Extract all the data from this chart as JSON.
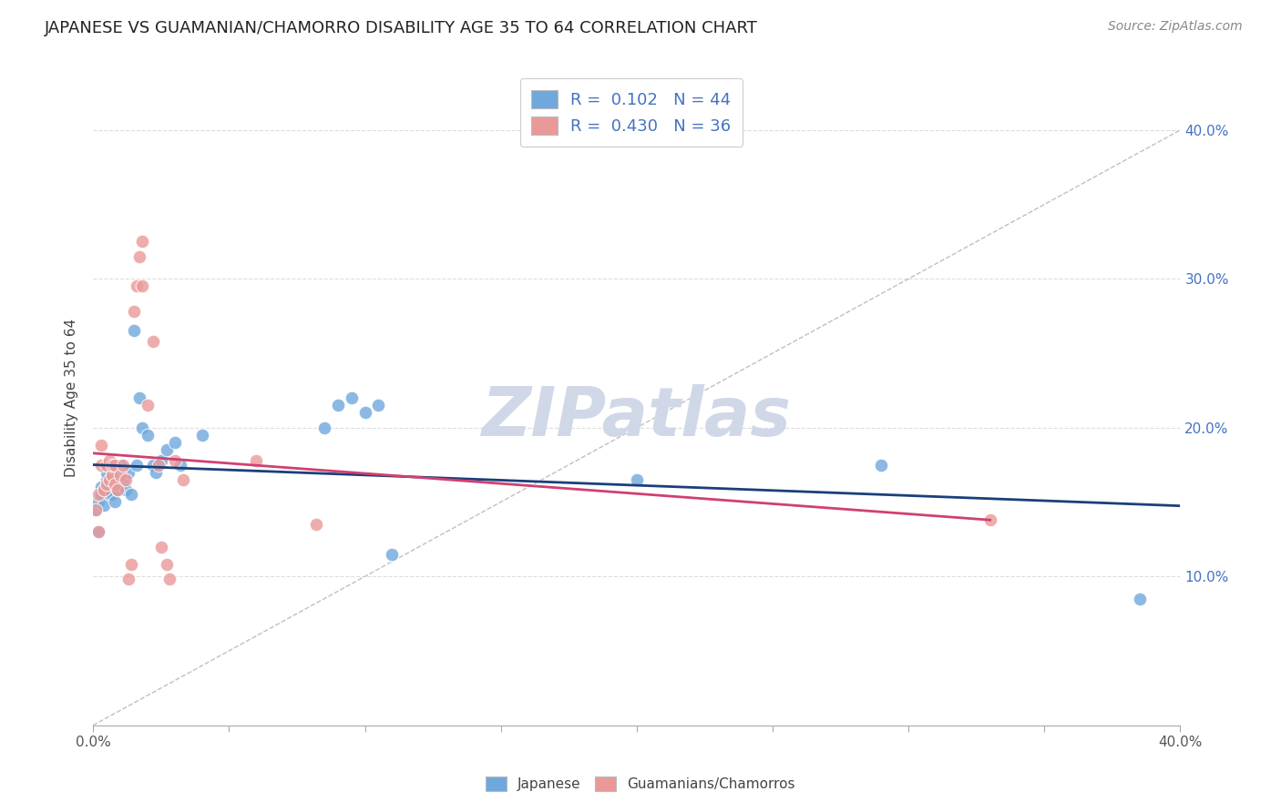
{
  "title": "JAPANESE VS GUAMANIAN/CHAMORRO DISABILITY AGE 35 TO 64 CORRELATION CHART",
  "source": "Source: ZipAtlas.com",
  "ylabel": "Disability Age 35 to 64",
  "xlim": [
    0.0,
    0.4
  ],
  "ylim": [
    0.0,
    0.44
  ],
  "xticks": [
    0.0,
    0.05,
    0.1,
    0.15,
    0.2,
    0.25,
    0.3,
    0.35,
    0.4
  ],
  "yticks": [
    0.1,
    0.2,
    0.3,
    0.4
  ],
  "ytick_labels": [
    "10.0%",
    "20.0%",
    "30.0%",
    "40.0%"
  ],
  "xtick_labels": [
    "0.0%",
    "",
    "",
    "",
    "",
    "",
    "",
    "",
    "40.0%"
  ],
  "japanese_color": "#6fa8dc",
  "guamanian_color": "#ea9999",
  "japanese_R": 0.102,
  "japanese_N": 44,
  "guamanian_R": 0.43,
  "guamanian_N": 36,
  "japanese_points": [
    [
      0.001,
      0.145
    ],
    [
      0.002,
      0.15
    ],
    [
      0.002,
      0.13
    ],
    [
      0.003,
      0.16
    ],
    [
      0.003,
      0.155
    ],
    [
      0.004,
      0.158
    ],
    [
      0.004,
      0.148
    ],
    [
      0.005,
      0.165
    ],
    [
      0.005,
      0.17
    ],
    [
      0.006,
      0.155
    ],
    [
      0.006,
      0.162
    ],
    [
      0.007,
      0.168
    ],
    [
      0.007,
      0.155
    ],
    [
      0.008,
      0.163
    ],
    [
      0.008,
      0.15
    ],
    [
      0.009,
      0.158
    ],
    [
      0.009,
      0.17
    ],
    [
      0.01,
      0.175
    ],
    [
      0.01,
      0.162
    ],
    [
      0.011,
      0.165
    ],
    [
      0.012,
      0.158
    ],
    [
      0.013,
      0.17
    ],
    [
      0.014,
      0.155
    ],
    [
      0.015,
      0.265
    ],
    [
      0.016,
      0.175
    ],
    [
      0.017,
      0.22
    ],
    [
      0.018,
      0.2
    ],
    [
      0.02,
      0.195
    ],
    [
      0.022,
      0.175
    ],
    [
      0.023,
      0.17
    ],
    [
      0.025,
      0.178
    ],
    [
      0.027,
      0.185
    ],
    [
      0.03,
      0.19
    ],
    [
      0.032,
      0.175
    ],
    [
      0.04,
      0.195
    ],
    [
      0.085,
      0.2
    ],
    [
      0.09,
      0.215
    ],
    [
      0.095,
      0.22
    ],
    [
      0.1,
      0.21
    ],
    [
      0.105,
      0.215
    ],
    [
      0.11,
      0.115
    ],
    [
      0.2,
      0.165
    ],
    [
      0.29,
      0.175
    ],
    [
      0.385,
      0.085
    ]
  ],
  "guamanian_points": [
    [
      0.001,
      0.145
    ],
    [
      0.002,
      0.155
    ],
    [
      0.002,
      0.13
    ],
    [
      0.003,
      0.175
    ],
    [
      0.003,
      0.188
    ],
    [
      0.004,
      0.158
    ],
    [
      0.005,
      0.162
    ],
    [
      0.005,
      0.175
    ],
    [
      0.006,
      0.178
    ],
    [
      0.006,
      0.165
    ],
    [
      0.007,
      0.168
    ],
    [
      0.007,
      0.175
    ],
    [
      0.008,
      0.162
    ],
    [
      0.008,
      0.175
    ],
    [
      0.009,
      0.158
    ],
    [
      0.01,
      0.168
    ],
    [
      0.011,
      0.175
    ],
    [
      0.012,
      0.165
    ],
    [
      0.013,
      0.098
    ],
    [
      0.014,
      0.108
    ],
    [
      0.015,
      0.278
    ],
    [
      0.016,
      0.295
    ],
    [
      0.017,
      0.315
    ],
    [
      0.018,
      0.295
    ],
    [
      0.018,
      0.325
    ],
    [
      0.02,
      0.215
    ],
    [
      0.022,
      0.258
    ],
    [
      0.024,
      0.175
    ],
    [
      0.025,
      0.12
    ],
    [
      0.027,
      0.108
    ],
    [
      0.028,
      0.098
    ],
    [
      0.03,
      0.178
    ],
    [
      0.033,
      0.165
    ],
    [
      0.06,
      0.178
    ],
    [
      0.082,
      0.135
    ],
    [
      0.33,
      0.138
    ]
  ],
  "background_color": "#ffffff",
  "grid_color": "#dddddd",
  "watermark_color": "#d0d8e8",
  "diagonal_line_color": "#c0c0c0",
  "blue_line_color": "#1a3f7a",
  "pink_line_color": "#d04070"
}
